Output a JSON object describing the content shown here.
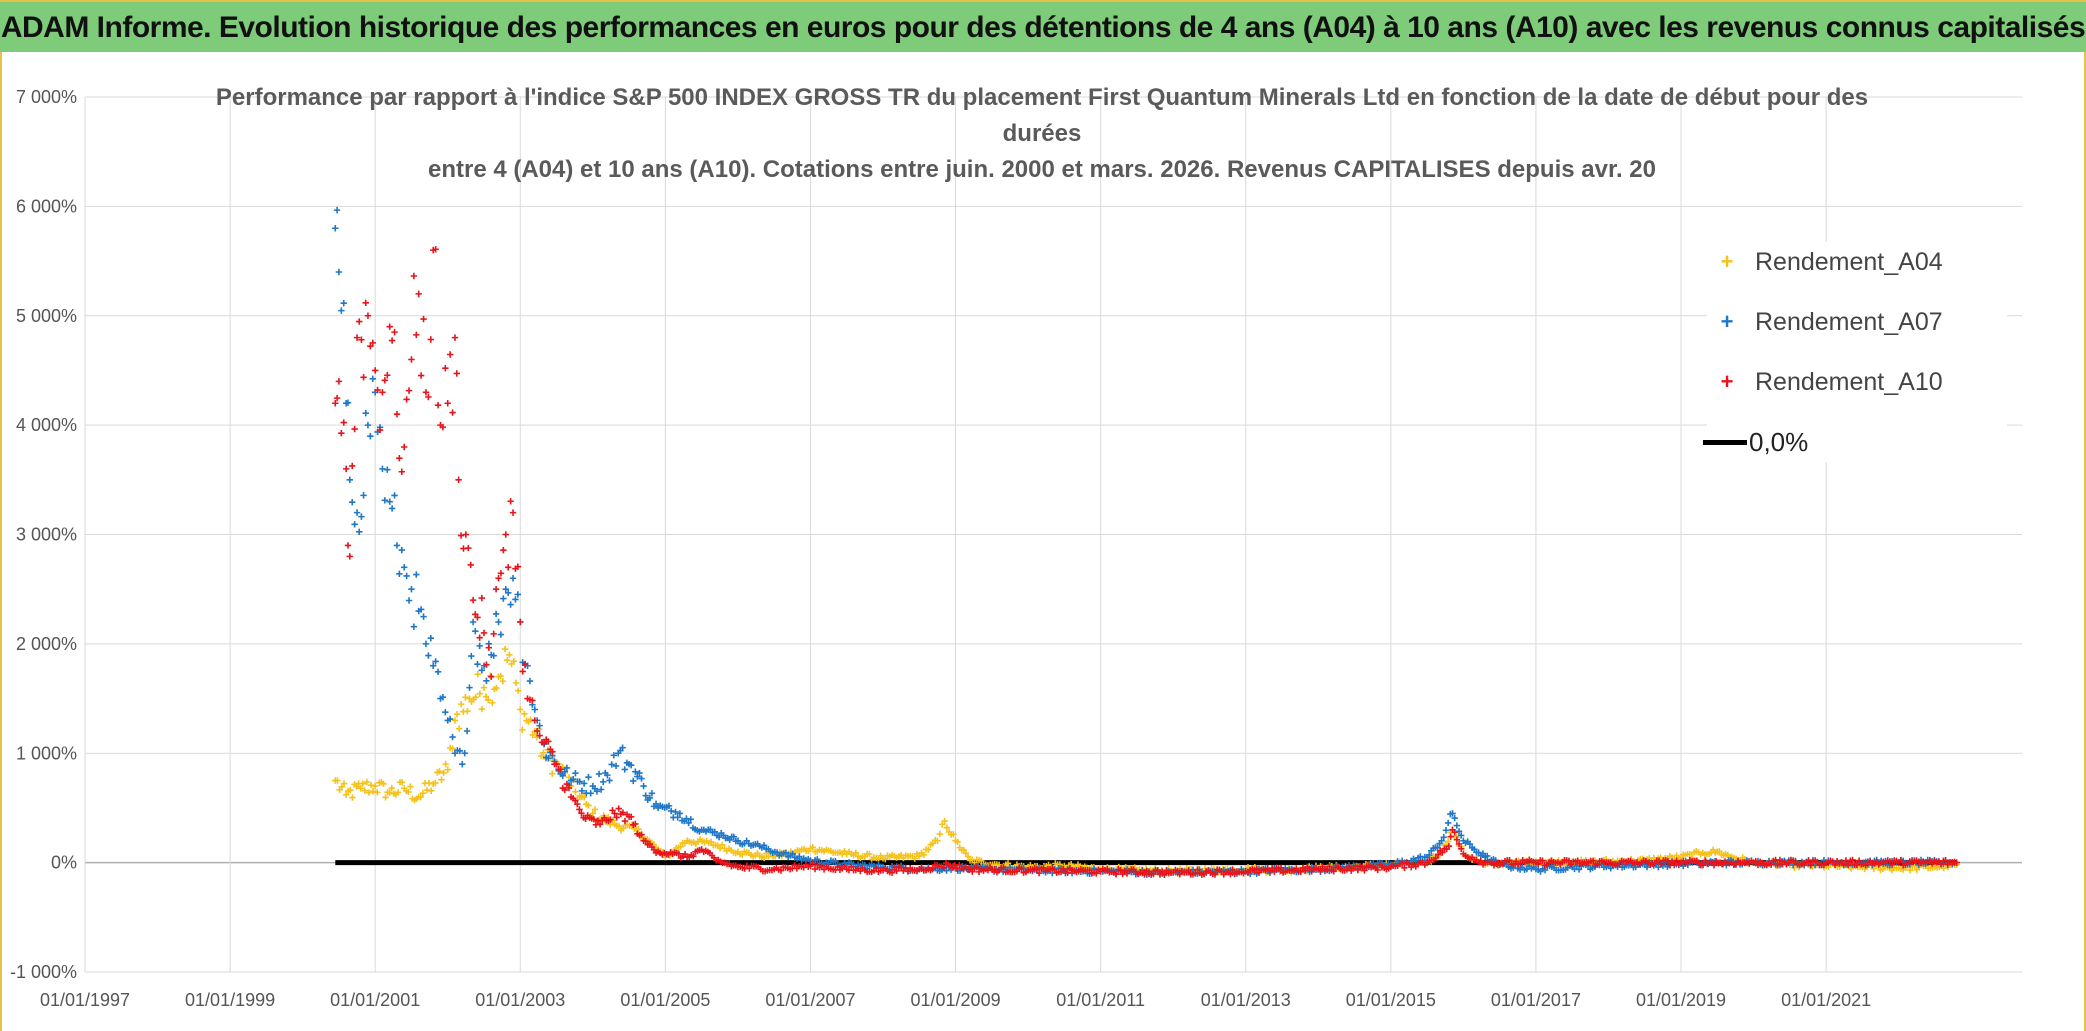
{
  "banner": {
    "title": "ADAM Informe. Evolution historique des performances en euros pour des détentions de 4 ans (A04) à 10 ans (A10) avec les revenus connus capitalisés"
  },
  "chart": {
    "title_line1": "Performance par rapport à l'indice S&P 500 INDEX GROSS TR  du placement First Quantum Minerals Ltd en fonction de la date de début pour des",
    "title_line2": "durées",
    "title_line3": "entre 4 (A04) et 10 ans (A10). Cotations entre juin. 2000 et mars. 2026. Revenus CAPITALISES depuis avr. 20"
  },
  "legend": {
    "items": [
      {
        "label": "Rendement_A04",
        "symbol": "+",
        "color": "#f5c21b"
      },
      {
        "label": "Rendement_A07",
        "symbol": "+",
        "color": "#1f77c8"
      },
      {
        "label": "Rendement_A10",
        "symbol": "+",
        "color": "#e8141c"
      }
    ],
    "zero_label": "0,0%"
  },
  "chart_data": {
    "type": "scatter",
    "title": "Performance par rapport à l'indice S&P 500 INDEX GROSS TR du placement First Quantum Minerals Ltd en fonction de la date de début pour des durées entre 4 (A04) et 10 ans (A10). Cotations entre juin. 2000 et mars. 2026. Revenus CAPITALISES depuis avr. 20",
    "xlabel": "",
    "ylabel": "",
    "x_unit": "year",
    "xlim": [
      1997.0,
      2023.7
    ],
    "ylim": [
      -1000,
      7000
    ],
    "y_ticks": [
      -1000,
      0,
      1000,
      2000,
      3000,
      4000,
      5000,
      6000,
      7000
    ],
    "y_tick_labels": [
      "-1 000%",
      "0%",
      "1 000%",
      "2 000%",
      "3 000%",
      "4 000%",
      "5 000%",
      "6 000%",
      "7 000%"
    ],
    "x_ticks": [
      1997,
      1999,
      2001,
      2003,
      2005,
      2007,
      2009,
      2011,
      2013,
      2015,
      2017,
      2019,
      2021
    ],
    "x_tick_labels": [
      "01/01/1997",
      "01/01/1999",
      "01/01/2001",
      "01/01/2003",
      "01/01/2005",
      "01/01/2007",
      "01/01/2009",
      "01/01/2011",
      "01/01/2013",
      "01/01/2015",
      "01/01/2017",
      "01/01/2019",
      "01/01/2021"
    ],
    "grid": true,
    "legend_position": "top-right",
    "series": [
      {
        "name": "Rendement_A04",
        "color": "#f5c21b",
        "marker": "+",
        "points": [
          [
            2000.45,
            750
          ],
          [
            2000.6,
            620
          ],
          [
            2000.8,
            680
          ],
          [
            2001.0,
            700
          ],
          [
            2001.2,
            640
          ],
          [
            2001.4,
            680
          ],
          [
            2001.6,
            600
          ],
          [
            2001.8,
            720
          ],
          [
            2002.0,
            850
          ],
          [
            2002.1,
            1300
          ],
          [
            2002.3,
            1500
          ],
          [
            2002.5,
            1600
          ],
          [
            2002.7,
            1700
          ],
          [
            2002.85,
            1900
          ],
          [
            2003.0,
            1400
          ],
          [
            2003.2,
            1200
          ],
          [
            2003.35,
            950
          ],
          [
            2003.5,
            900
          ],
          [
            2003.7,
            700
          ],
          [
            2004.0,
            450
          ],
          [
            2004.3,
            350
          ],
          [
            2004.6,
            300
          ],
          [
            2004.9,
            120
          ],
          [
            2005.0,
            50
          ],
          [
            2005.3,
            200
          ],
          [
            2005.6,
            180
          ],
          [
            2006.0,
            100
          ],
          [
            2006.3,
            60
          ],
          [
            2006.7,
            80
          ],
          [
            2007.0,
            130
          ],
          [
            2007.5,
            80
          ],
          [
            2008.0,
            40
          ],
          [
            2008.5,
            60
          ],
          [
            2008.75,
            200
          ],
          [
            2008.85,
            380
          ],
          [
            2009.0,
            200
          ],
          [
            2009.2,
            20
          ],
          [
            2009.6,
            -20
          ],
          [
            2010.0,
            -40
          ],
          [
            2010.5,
            -30
          ],
          [
            2011.0,
            -60
          ],
          [
            2011.5,
            -70
          ],
          [
            2012.0,
            -80
          ],
          [
            2012.5,
            -70
          ],
          [
            2013.0,
            -60
          ],
          [
            2013.5,
            -70
          ],
          [
            2014.0,
            -50
          ],
          [
            2014.5,
            -40
          ],
          [
            2015.0,
            -20
          ],
          [
            2015.5,
            0
          ],
          [
            2015.7,
            100
          ],
          [
            2015.85,
            300
          ],
          [
            2016.0,
            80
          ],
          [
            2016.3,
            -20
          ],
          [
            2016.7,
            0
          ],
          [
            2017.0,
            10
          ],
          [
            2017.5,
            0
          ],
          [
            2018.0,
            10
          ],
          [
            2018.5,
            20
          ],
          [
            2019.0,
            50
          ],
          [
            2019.3,
            90
          ],
          [
            2019.5,
            100
          ],
          [
            2019.7,
            50
          ],
          [
            2020.0,
            0
          ],
          [
            2020.5,
            -20
          ],
          [
            2021.0,
            -30
          ],
          [
            2021.5,
            -40
          ],
          [
            2022.0,
            -50
          ],
          [
            2022.5,
            -40
          ],
          [
            2022.8,
            -20
          ]
        ]
      },
      {
        "name": "Rendement_A07",
        "color": "#1f77c8",
        "marker": "+",
        "points": [
          [
            2000.45,
            5800
          ],
          [
            2000.5,
            5400
          ],
          [
            2000.6,
            4200
          ],
          [
            2000.65,
            3500
          ],
          [
            2000.75,
            3200
          ],
          [
            2000.9,
            4000
          ],
          [
            2001.0,
            4300
          ],
          [
            2001.1,
            3600
          ],
          [
            2001.2,
            3300
          ],
          [
            2001.3,
            2900
          ],
          [
            2001.4,
            2700
          ],
          [
            2001.5,
            2500
          ],
          [
            2001.6,
            2300
          ],
          [
            2001.7,
            2000
          ],
          [
            2001.8,
            1800
          ],
          [
            2001.9,
            1500
          ],
          [
            2002.0,
            1300
          ],
          [
            2002.1,
            1000
          ],
          [
            2002.2,
            900
          ],
          [
            2002.3,
            1600
          ],
          [
            2002.35,
            2200
          ],
          [
            2002.5,
            1800
          ],
          [
            2002.6,
            1900
          ],
          [
            2002.7,
            2200
          ],
          [
            2002.8,
            2500
          ],
          [
            2002.9,
            2600
          ],
          [
            2003.0,
            2200
          ],
          [
            2003.1,
            1800
          ],
          [
            2003.2,
            1400
          ],
          [
            2003.3,
            1100
          ],
          [
            2003.5,
            900
          ],
          [
            2003.7,
            750
          ],
          [
            2004.0,
            700
          ],
          [
            2004.2,
            800
          ],
          [
            2004.35,
            1000
          ],
          [
            2004.5,
            900
          ],
          [
            2004.7,
            700
          ],
          [
            2004.9,
            500
          ],
          [
            2005.2,
            450
          ],
          [
            2005.5,
            300
          ],
          [
            2005.8,
            250
          ],
          [
            2006.0,
            200
          ],
          [
            2006.3,
            150
          ],
          [
            2006.6,
            80
          ],
          [
            2007.0,
            20
          ],
          [
            2007.5,
            -20
          ],
          [
            2008.0,
            -40
          ],
          [
            2008.5,
            -60
          ],
          [
            2009.0,
            -50
          ],
          [
            2009.5,
            -60
          ],
          [
            2010.0,
            -70
          ],
          [
            2011.0,
            -80
          ],
          [
            2012.0,
            -90
          ],
          [
            2013.0,
            -80
          ],
          [
            2014.0,
            -60
          ],
          [
            2015.0,
            -20
          ],
          [
            2015.5,
            50
          ],
          [
            2015.7,
            200
          ],
          [
            2015.85,
            450
          ],
          [
            2016.0,
            200
          ],
          [
            2016.3,
            50
          ],
          [
            2016.5,
            -20
          ],
          [
            2017.0,
            -60
          ],
          [
            2017.5,
            -40
          ],
          [
            2018.0,
            -30
          ],
          [
            2018.5,
            -20
          ],
          [
            2019.0,
            -10
          ],
          [
            2019.5,
            0
          ],
          [
            2020.0,
            0
          ],
          [
            2021.0,
            0
          ],
          [
            2022.0,
            0
          ],
          [
            2022.8,
            0
          ]
        ]
      },
      {
        "name": "Rendement_A10",
        "color": "#e8141c",
        "marker": "+",
        "points": [
          [
            2000.45,
            4200
          ],
          [
            2000.5,
            4400
          ],
          [
            2000.6,
            3600
          ],
          [
            2000.65,
            2800
          ],
          [
            2000.75,
            4800
          ],
          [
            2000.9,
            5000
          ],
          [
            2001.0,
            4500
          ],
          [
            2001.1,
            4300
          ],
          [
            2001.2,
            4900
          ],
          [
            2001.3,
            4100
          ],
          [
            2001.4,
            3800
          ],
          [
            2001.5,
            4600
          ],
          [
            2001.6,
            5200
          ],
          [
            2001.7,
            4300
          ],
          [
            2001.8,
            5600
          ],
          [
            2001.9,
            4000
          ],
          [
            2002.0,
            4200
          ],
          [
            2002.1,
            4800
          ],
          [
            2002.15,
            3500
          ],
          [
            2002.25,
            3000
          ],
          [
            2002.35,
            2400
          ],
          [
            2002.5,
            2100
          ],
          [
            2002.6,
            1700
          ],
          [
            2002.7,
            2600
          ],
          [
            2002.8,
            3000
          ],
          [
            2002.9,
            3200
          ],
          [
            2003.0,
            2200
          ],
          [
            2003.1,
            1500
          ],
          [
            2003.2,
            1300
          ],
          [
            2003.3,
            1100
          ],
          [
            2003.5,
            900
          ],
          [
            2003.7,
            600
          ],
          [
            2003.9,
            400
          ],
          [
            2004.1,
            350
          ],
          [
            2004.3,
            450
          ],
          [
            2004.5,
            420
          ],
          [
            2004.7,
            200
          ],
          [
            2004.9,
            100
          ],
          [
            2005.1,
            80
          ],
          [
            2005.3,
            50
          ],
          [
            2005.5,
            120
          ],
          [
            2005.7,
            20
          ],
          [
            2006.0,
            -40
          ],
          [
            2006.5,
            -60
          ],
          [
            2007.0,
            -30
          ],
          [
            2007.5,
            -60
          ],
          [
            2008.0,
            -70
          ],
          [
            2008.5,
            -60
          ],
          [
            2008.9,
            -20
          ],
          [
            2009.2,
            -60
          ],
          [
            2010.0,
            -70
          ],
          [
            2011.0,
            -80
          ],
          [
            2012.0,
            -90
          ],
          [
            2013.0,
            -80
          ],
          [
            2014.0,
            -60
          ],
          [
            2015.0,
            -40
          ],
          [
            2015.5,
            0
          ],
          [
            2015.8,
            150
          ],
          [
            2015.85,
            300
          ],
          [
            2016.0,
            80
          ],
          [
            2016.3,
            0
          ],
          [
            2017.0,
            0
          ],
          [
            2018.0,
            0
          ],
          [
            2019.0,
            0
          ],
          [
            2020.0,
            0
          ],
          [
            2021.0,
            0
          ],
          [
            2022.0,
            0
          ],
          [
            2022.8,
            0
          ]
        ]
      }
    ],
    "reference_line": {
      "name": "0,0%",
      "color": "#000000",
      "y": 0,
      "x_range": [
        2000.45,
        2022.8
      ]
    }
  }
}
